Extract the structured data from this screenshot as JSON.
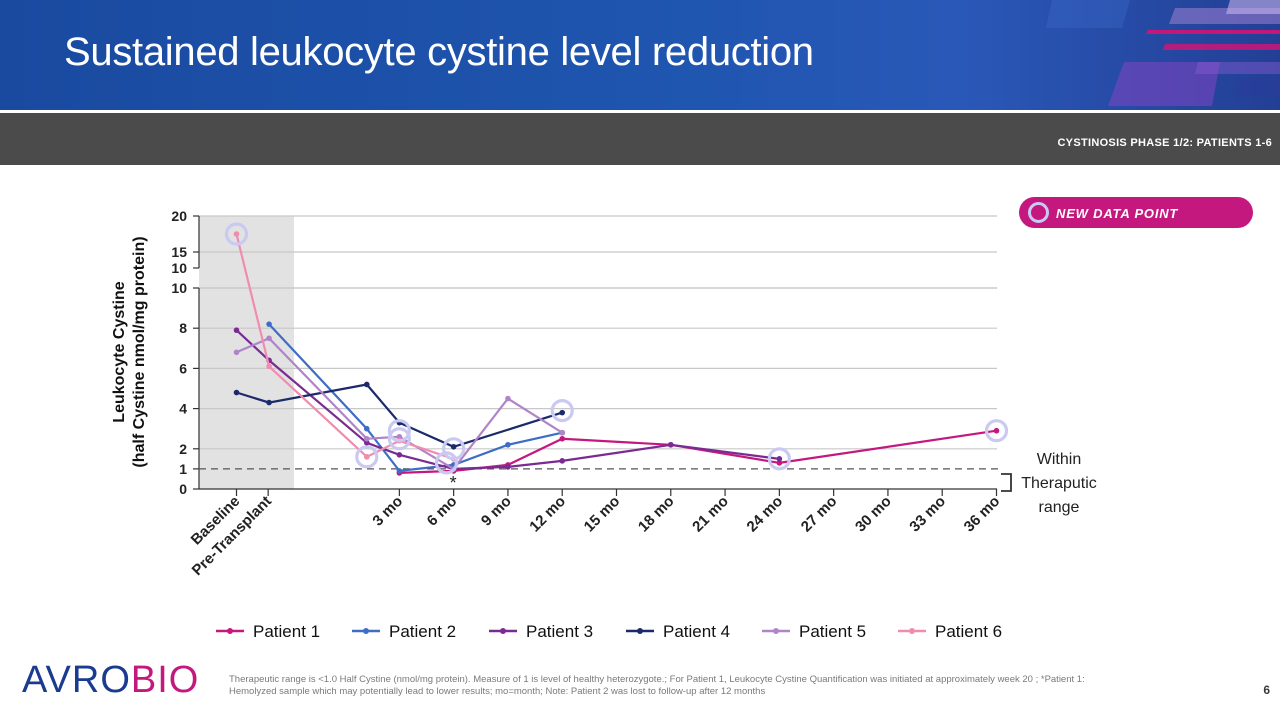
{
  "slide": {
    "title": "Sustained leukocyte cystine level reduction",
    "subtitle": "CYSTINOSIS  PHASE  1/2: PATIENTS  1-6",
    "badge_label": "NEW DATA POINT",
    "footnote": "Therapeutic range is <1.0 Half Cystine (nmol/mg protein). Measure of 1 is level of healthy heterozygote.; For Patient 1, Leukocyte Cystine Quantification was initiated at approximately week 20 ; *Patient 1: Hemolyzed sample which may potentially lead to lower results; mo=month; Note: Patient 2 was lost to follow-up after 12 months",
    "page_number": "6",
    "logo": {
      "part1": "AVRO",
      "part2": "BIO"
    },
    "colors": {
      "header_blue": "#1f56b0",
      "subbar_gray": "#4b4b4b",
      "magenta": "#c4187e",
      "highlight": "#c9c9f2"
    }
  },
  "chart_data": {
    "type": "line",
    "ylabel": "Leukocyte Cystine\n(half Cystine nmol/mg protein)",
    "x_ticks": [
      "Baseline",
      "Pre-Transplant",
      "3 mo",
      "6 mo",
      "9 mo",
      "12 mo",
      "15 mo",
      "18 mo",
      "21 mo",
      "24 mo",
      "27 mo",
      "30 mo",
      "33 mo",
      "36 mo"
    ],
    "x_tick_months": [
      -6,
      -4.25,
      3,
      6,
      9,
      12,
      15,
      18,
      21,
      24,
      27,
      30,
      33,
      36
    ],
    "y_lower_ticks": [
      0,
      1,
      2,
      4,
      6,
      8,
      10
    ],
    "y_upper_ticks": [
      10,
      15,
      20
    ],
    "y_lower_range": [
      0,
      10
    ],
    "y_upper_range": [
      10,
      20
    ],
    "shaded_region_months": [
      -7.9,
      -3.0
    ],
    "therapeutic_threshold": 1,
    "therapeutic_label": "Within\nTheraputic\nrange",
    "asterisk_note": {
      "month": 6,
      "value": 0.9,
      "text": "*"
    },
    "series": [
      {
        "name": "Patient 1",
        "color": "#c4187e",
        "points": [
          [
            3,
            0.8
          ],
          [
            6,
            0.9
          ],
          [
            9,
            1.2
          ],
          [
            12,
            2.5
          ],
          [
            18,
            2.2
          ],
          [
            24,
            1.3
          ],
          [
            36,
            2.9
          ]
        ]
      },
      {
        "name": "Patient 2",
        "color": "#3d6dc4",
        "points": [
          [
            -4.2,
            8.2
          ],
          [
            1.2,
            3.0
          ],
          [
            3,
            0.9
          ],
          [
            6,
            1.2
          ],
          [
            9,
            2.2
          ],
          [
            12,
            2.8
          ]
        ]
      },
      {
        "name": "Patient 3",
        "color": "#7a2b91",
        "points": [
          [
            -6,
            7.9
          ],
          [
            -4.2,
            6.4
          ],
          [
            1.2,
            2.3
          ],
          [
            3,
            1.7
          ],
          [
            6,
            1.0
          ],
          [
            9,
            1.1
          ],
          [
            12,
            1.4
          ],
          [
            18,
            2.2
          ],
          [
            24,
            1.5
          ]
        ]
      },
      {
        "name": "Patient 4",
        "color": "#1b2a6b",
        "points": [
          [
            -6,
            4.8
          ],
          [
            -4.2,
            4.3
          ],
          [
            1.2,
            5.2
          ],
          [
            3,
            3.3
          ],
          [
            6,
            2.1
          ],
          [
            12,
            3.8
          ]
        ]
      },
      {
        "name": "Patient 5",
        "color": "#b084c8",
        "points": [
          [
            -6,
            6.8
          ],
          [
            -4.2,
            7.5
          ],
          [
            1.2,
            2.5
          ],
          [
            3,
            2.6
          ],
          [
            6,
            1.0
          ],
          [
            9,
            4.5
          ],
          [
            12,
            2.8
          ]
        ]
      },
      {
        "name": "Patient 6",
        "color": "#f08cb0",
        "points": [
          [
            -6,
            17.5
          ],
          [
            -4.2,
            6.1
          ],
          [
            1.2,
            1.6
          ],
          [
            3,
            2.4
          ],
          [
            6,
            1.5
          ]
        ]
      }
    ],
    "new_data_points": [
      [
        -6,
        17.5
      ],
      [
        1.2,
        1.6
      ],
      [
        3,
        2.9
      ],
      [
        3,
        2.5
      ],
      [
        5.6,
        1.3
      ],
      [
        6,
        2.0
      ],
      [
        12,
        3.9
      ],
      [
        24,
        1.5
      ],
      [
        36,
        2.9
      ]
    ],
    "legend_position": "bottom",
    "grid": true
  }
}
